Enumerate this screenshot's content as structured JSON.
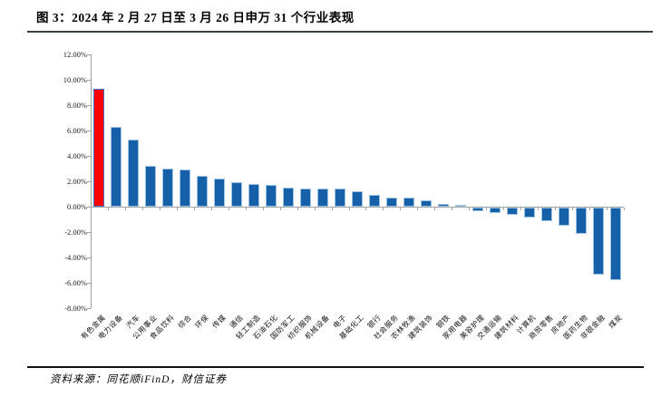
{
  "figure": {
    "title": "图 3：2024 年 2 月 27 日至 3 月 26 日申万 31 个行业表现",
    "source": "资料来源：同花顺iFinD，财信证券"
  },
  "chart_data": {
    "type": "bar",
    "title": "2024年2月27日至3月26日申万31个行业表现",
    "categories": [
      "有色金属",
      "电力设备",
      "汽车",
      "公用事业",
      "食品饮料",
      "综合",
      "环保",
      "传媒",
      "通信",
      "轻工制造",
      "石油石化",
      "国防军工",
      "纺织服饰",
      "机械设备",
      "电子",
      "基础化工",
      "银行",
      "社会服务",
      "农林牧渔",
      "建筑装饰",
      "钢铁",
      "家用电器",
      "美容护理",
      "交通运输",
      "建筑材料",
      "计算机",
      "商贸零售",
      "房地产",
      "医药生物",
      "非银金融",
      "煤炭"
    ],
    "values": [
      9.3,
      6.3,
      5.3,
      3.2,
      3.0,
      2.95,
      2.4,
      2.25,
      1.95,
      1.8,
      1.7,
      1.5,
      1.45,
      1.4,
      1.4,
      1.2,
      0.95,
      0.7,
      0.7,
      0.5,
      0.2,
      0.15,
      -0.3,
      -0.45,
      -0.6,
      -0.8,
      -1.1,
      -1.45,
      -2.1,
      -5.25,
      -5.7
    ],
    "unit": "%",
    "xlabel": "",
    "ylabel": "",
    "ylim": [
      -8,
      12
    ],
    "y_tick_step": 2,
    "y_tick_labels": [
      "12.00%",
      "10.00%",
      "8.00%",
      "6.00%",
      "4.00%",
      "2.00%",
      "0.00%",
      "-2.00%",
      "-4.00%",
      "-6.00%",
      "-8.00%"
    ],
    "grid": false,
    "legend_position": "none",
    "highlight_index": 0,
    "colors": {
      "bar_fill": "#1560a8",
      "bar_border": "#9cc2e4",
      "highlight_fill": "#fe0000",
      "highlight_border": "#4472c4",
      "axis": "#a0a0a0",
      "text": "#000000"
    }
  }
}
